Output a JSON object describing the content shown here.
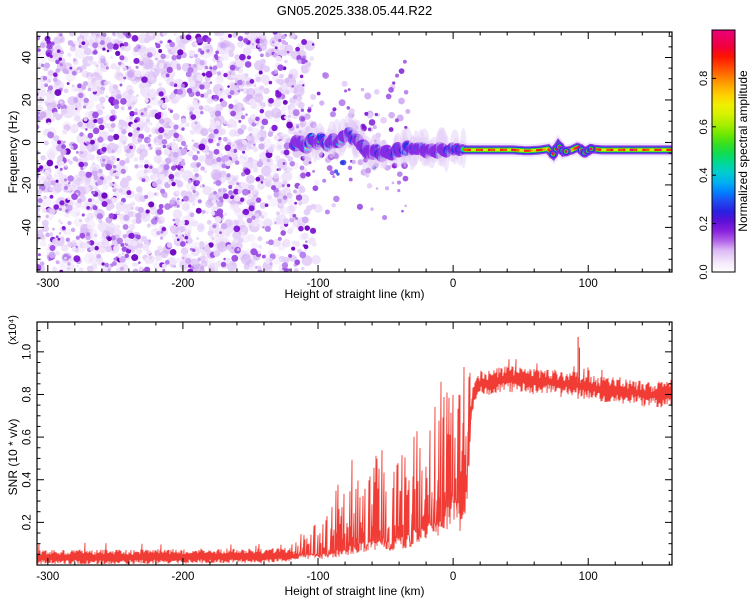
{
  "figure": {
    "title": "GN05.2025.338.05.44.R22",
    "background": "#ffffff",
    "frame_color": "#000000"
  },
  "chart_data": [
    {
      "type": "heatmap",
      "title": "GN05.2025.338.05.44.R22",
      "xlabel": "Height of straight line (km)",
      "ylabel": "Frequency (Hz)",
      "xlim": [
        -308,
        162
      ],
      "ylim": [
        -61,
        52
      ],
      "x_ticks": [
        -300,
        -200,
        -100,
        0,
        100
      ],
      "x_minor_step": 20,
      "y_ticks": [
        40,
        20,
        0,
        -20,
        -40
      ],
      "y_minor_step": 5,
      "grid": false,
      "colorbar": {
        "label": "Normalized spectral amplitude",
        "ticks": [
          "0.0",
          "0.2",
          "0.4",
          "0.6",
          "0.8"
        ],
        "tick_values": [
          0.0,
          0.2,
          0.4,
          0.6,
          0.8
        ],
        "range": [
          0,
          1
        ],
        "stops": [
          [
            0.0,
            "#ffffff"
          ],
          [
            0.04,
            "#f4e8fc"
          ],
          [
            0.09,
            "#dcb8f4"
          ],
          [
            0.13,
            "#b060e8"
          ],
          [
            0.17,
            "#8820dc"
          ],
          [
            0.21,
            "#5c10d8"
          ],
          [
            0.25,
            "#2820e0"
          ],
          [
            0.29,
            "#2048f0"
          ],
          [
            0.33,
            "#0080ff"
          ],
          [
            0.37,
            "#00b0f0"
          ],
          [
            0.41,
            "#00ccd0"
          ],
          [
            0.45,
            "#00d898"
          ],
          [
            0.49,
            "#10dc50"
          ],
          [
            0.53,
            "#38e020"
          ],
          [
            0.57,
            "#70e800"
          ],
          [
            0.61,
            "#a8ee00"
          ],
          [
            0.65,
            "#d4f200"
          ],
          [
            0.69,
            "#f0f000"
          ],
          [
            0.73,
            "#ffd000"
          ],
          [
            0.77,
            "#ffa800"
          ],
          [
            0.81,
            "#ff7800"
          ],
          [
            0.85,
            "#ff4400"
          ],
          [
            0.89,
            "#fc1400"
          ],
          [
            0.93,
            "#f2003c"
          ],
          [
            1.0,
            "#e8007a"
          ]
        ]
      },
      "noise_region": {
        "x_range": [
          -308,
          -113
        ],
        "fade_end_km": -95,
        "palette": [
          "#f0e4fb",
          "#e3cdf8",
          "#cfaaf3",
          "#b47cec",
          "#9a4ae2",
          "#7d14d4",
          "#6a00c0"
        ],
        "weights": [
          3,
          3,
          2.5,
          2,
          1.5,
          1,
          0.6
        ],
        "description": "full-height purple speckle noise below -113 km"
      },
      "band": {
        "description": "narrow signal band near 0 Hz from -117 km to right edge",
        "points": [
          [
            -117,
            -1
          ],
          [
            -113,
            1
          ],
          [
            -109,
            -2
          ],
          [
            -105,
            2
          ],
          [
            -101,
            0
          ],
          [
            -97,
            3
          ],
          [
            -93,
            -2
          ],
          [
            -89,
            1
          ],
          [
            -85,
            -1
          ],
          [
            -81,
            3
          ],
          [
            -77,
            5
          ],
          [
            -73,
            2
          ],
          [
            -69,
            0
          ],
          [
            -65,
            -3
          ],
          [
            -61,
            -6
          ],
          [
            -57,
            -3
          ],
          [
            -53,
            -6
          ],
          [
            -49,
            -4
          ],
          [
            -45,
            -6
          ],
          [
            -41,
            -3
          ],
          [
            -37,
            -5
          ],
          [
            -33,
            -2
          ],
          [
            -29,
            -4
          ],
          [
            -25,
            -2
          ],
          [
            -21,
            -4
          ],
          [
            -17,
            -3
          ],
          [
            -13,
            -5
          ],
          [
            -9,
            -3
          ],
          [
            -5,
            -4
          ],
          [
            -1,
            -3
          ],
          [
            5,
            -3.5
          ],
          [
            15,
            -3.5
          ],
          [
            25,
            -3.5
          ],
          [
            35,
            -3.5
          ],
          [
            45,
            -3.5
          ],
          [
            55,
            -4
          ],
          [
            65,
            -3.5
          ],
          [
            70,
            -3
          ],
          [
            74,
            -5.5
          ],
          [
            78,
            -1.5
          ],
          [
            82,
            -4.5
          ],
          [
            88,
            -3.5
          ],
          [
            93,
            -2
          ],
          [
            97,
            -5
          ],
          [
            102,
            -3
          ],
          [
            110,
            -3.5
          ],
          [
            120,
            -3.5
          ],
          [
            130,
            -3.5
          ],
          [
            140,
            -3.5
          ],
          [
            150,
            -3.5
          ],
          [
            162,
            -3.5
          ]
        ],
        "blob_region_end_km": 8,
        "jog_clusters_km": [
          [
            74,
            84
          ],
          [
            95,
            103
          ]
        ],
        "colors": {
          "halo": "#e3ccf7",
          "purple": "#8a2be2",
          "blue": "#2433e8",
          "cyan": "#00c4e8",
          "green": "#2ae02a",
          "yellow": "#e8e800",
          "orange": "#ff9000",
          "red": "#ff2200",
          "magenta": "#ee007a"
        }
      },
      "streak": {
        "description": "faint diagonal trace of purple blobs rising to upper right",
        "points": [
          [
            -62,
            6
          ],
          [
            -60,
            9
          ],
          [
            -57,
            13
          ],
          [
            -55,
            16
          ],
          [
            -53,
            18
          ],
          [
            -48,
            22
          ],
          [
            -46,
            25
          ],
          [
            -44,
            28
          ],
          [
            -42,
            31
          ],
          [
            -38,
            34
          ],
          [
            -36,
            38
          ]
        ],
        "color": "#7d1fd2"
      }
    },
    {
      "type": "line",
      "xlabel": "Height of straight line (km)",
      "ylabel": "SNR (10 * v/v)",
      "scale_note": "(x10⁴)",
      "xlim": [
        -308,
        162
      ],
      "ylim": [
        0,
        1.14
      ],
      "x_ticks": [
        -300,
        -200,
        -100,
        0,
        100
      ],
      "x_minor_step": 20,
      "y_ticks": [
        "0.2",
        "0.4",
        "0.6",
        "0.8",
        "1.0"
      ],
      "y_tick_values": [
        0.2,
        0.4,
        0.6,
        0.8,
        1.0
      ],
      "y_minor_step": 0.05,
      "grid": false,
      "line_color": "#f03c34",
      "envelope_base_peak": [
        [
          -305,
          0.035,
          0.065
        ],
        [
          -250,
          0.035,
          0.07
        ],
        [
          -180,
          0.04,
          0.075
        ],
        [
          -140,
          0.04,
          0.09
        ],
        [
          -120,
          0.045,
          0.12
        ],
        [
          -108,
          0.05,
          0.16
        ],
        [
          -98,
          0.05,
          0.22
        ],
        [
          -90,
          0.06,
          0.3
        ],
        [
          -83,
          0.07,
          0.45
        ],
        [
          -76,
          0.09,
          0.5
        ],
        [
          -70,
          0.1,
          0.44
        ],
        [
          -64,
          0.1,
          0.5
        ],
        [
          -58,
          0.12,
          0.62
        ],
        [
          -54,
          0.13,
          0.7
        ],
        [
          -50,
          0.11,
          0.4
        ],
        [
          -46,
          0.1,
          0.36
        ],
        [
          -42,
          0.12,
          0.5
        ],
        [
          -37,
          0.14,
          0.55
        ],
        [
          -32,
          0.15,
          0.58
        ],
        [
          -27,
          0.16,
          0.62
        ],
        [
          -22,
          0.17,
          0.58
        ],
        [
          -17,
          0.2,
          0.65
        ],
        [
          -13,
          0.22,
          0.75
        ],
        [
          -11,
          0.24,
          0.97
        ],
        [
          -8,
          0.26,
          0.82
        ],
        [
          -5,
          0.3,
          0.88
        ],
        [
          -2,
          0.33,
          0.9
        ],
        [
          2,
          0.3,
          0.85
        ],
        [
          5,
          0.28,
          0.93
        ],
        [
          8,
          0.25,
          1.0
        ],
        [
          10,
          0.45,
          0.92
        ],
        [
          12,
          0.65,
          0.95
        ],
        [
          15,
          0.8,
          0.94
        ],
        [
          20,
          0.85,
          0.93
        ],
        [
          30,
          0.86,
          0.94
        ],
        [
          40,
          0.87,
          0.94
        ],
        [
          50,
          0.87,
          0.93
        ],
        [
          60,
          0.86,
          0.92
        ],
        [
          70,
          0.86,
          0.92
        ],
        [
          80,
          0.85,
          0.91
        ],
        [
          90,
          0.85,
          0.9
        ],
        [
          93,
          0.84,
          0.92
        ],
        [
          96,
          0.84,
          0.9
        ],
        [
          105,
          0.83,
          0.88
        ],
        [
          115,
          0.82,
          0.87
        ],
        [
          125,
          0.82,
          0.87
        ],
        [
          135,
          0.81,
          0.86
        ],
        [
          145,
          0.8,
          0.86
        ],
        [
          155,
          0.8,
          0.85
        ],
        [
          162,
          0.81,
          0.86
        ]
      ],
      "spikes": [
        [
          92.5,
          1.07
        ],
        [
          93.5,
          1.02
        ]
      ]
    }
  ]
}
